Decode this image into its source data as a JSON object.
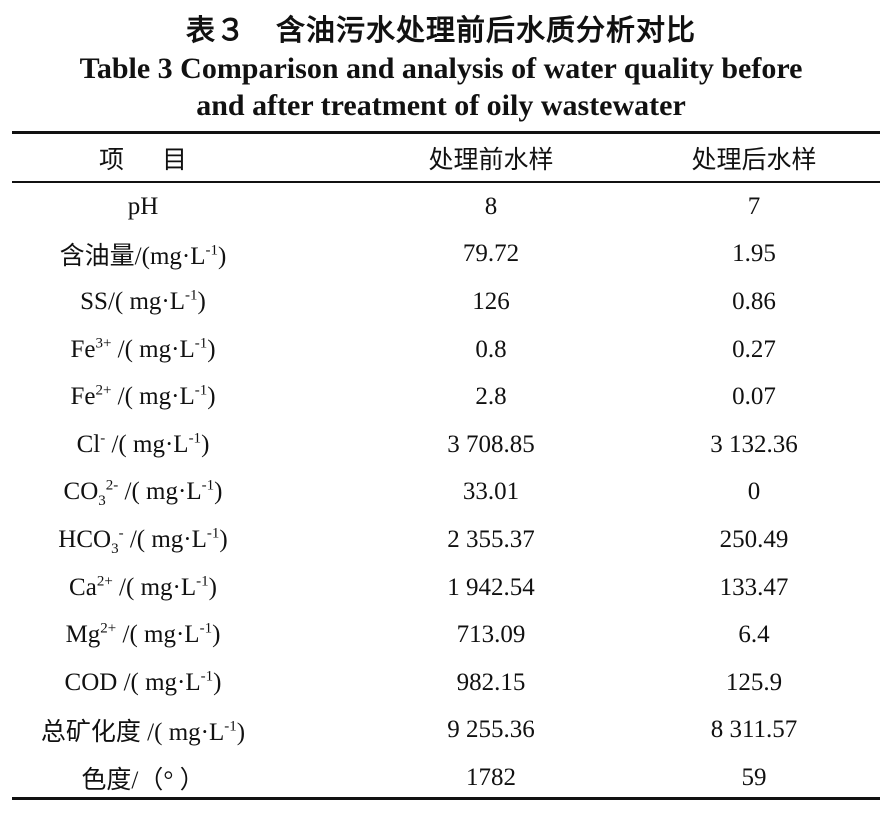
{
  "title": {
    "cn": "表３　含油污水处理前后水质分析对比",
    "en_line1": "Table 3 Comparison and analysis of water quality before",
    "en_line2": "and after treatment of oily wastewater"
  },
  "table": {
    "headers": {
      "item_part1": "项",
      "item_part2": "目",
      "before": "处理前水样",
      "after": "处理后水样"
    },
    "rows": [
      {
        "label_pre": "pH",
        "before": "8",
        "after": "7"
      },
      {
        "label_pre": "含油量/(mg·L",
        "label_sup": "-1",
        "label_post": ")",
        "before": "79.72",
        "after": "1.95"
      },
      {
        "label_pre": "SS/( mg·L",
        "label_sup": "-1",
        "label_post": ")",
        "before": "126",
        "after": "0.86"
      },
      {
        "label_pre": "Fe",
        "ion_sup": "3+",
        "label_mid": " /( mg·L",
        "label_sup": "-1",
        "label_post": ")",
        "before": "0.8",
        "after": "0.27"
      },
      {
        "label_pre": "Fe",
        "ion_sup": "2+",
        "label_mid": " /( mg·L",
        "label_sup": "-1",
        "label_post": ")",
        "before": "2.8",
        "after": "0.07"
      },
      {
        "label_pre": "Cl",
        "ion_sup": "-",
        "label_mid": " /( mg·L",
        "label_sup": "-1",
        "label_post": ")",
        "before": "3 708.85",
        "after": "3 132.36"
      },
      {
        "label_pre": "CO",
        "ion_sub": "3",
        "ion_sup": "2-",
        "label_mid": " /( mg·L",
        "label_sup": "-1",
        "label_post": ")",
        "before": "33.01",
        "after": "0"
      },
      {
        "label_pre": "HCO",
        "ion_sub": "3",
        "ion_sup": "-",
        "label_mid": " /( mg·L",
        "label_sup": "-1",
        "label_post": ")",
        "before": "2 355.37",
        "after": "250.49"
      },
      {
        "label_pre": "Ca",
        "ion_sup": "2+",
        "label_mid": " /( mg·L",
        "label_sup": "-1",
        "label_post": ")",
        "before": "1 942.54",
        "after": "133.47"
      },
      {
        "label_pre": "Mg",
        "ion_sup": "2+",
        "label_mid": " /( mg·L",
        "label_sup": "-1",
        "label_post": ")",
        "before": "713.09",
        "after": "6.4"
      },
      {
        "label_pre": "COD /( mg·L",
        "label_sup": "-1",
        "label_post": ")",
        "before": "982.15",
        "after": "125.9"
      },
      {
        "label_pre": "总矿化度  /( mg·L",
        "label_sup": "-1",
        "label_post": ")",
        "before": "9 255.36",
        "after": "8 311.57"
      },
      {
        "label_pre": "色度/（°  ）",
        "before": "1782",
        "after": "59"
      }
    ]
  }
}
